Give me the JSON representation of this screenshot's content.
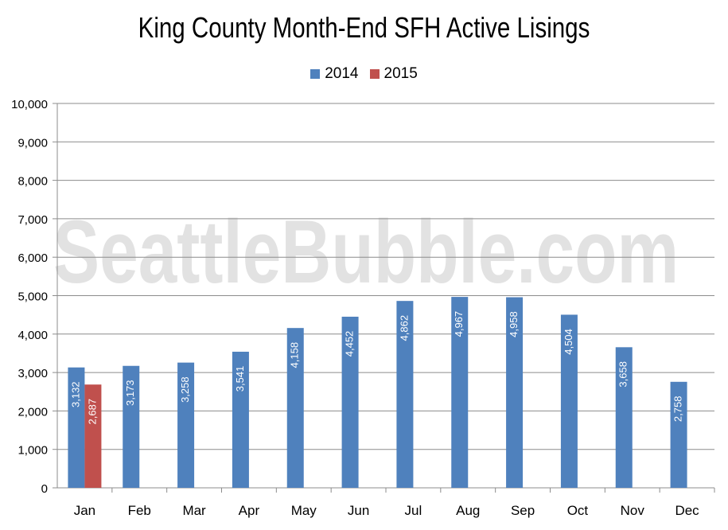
{
  "chart_data": {
    "type": "bar",
    "title": "King County Month-End SFH Active Lisings",
    "categories": [
      "Jan",
      "Feb",
      "Mar",
      "Apr",
      "May",
      "Jun",
      "Jul",
      "Aug",
      "Sep",
      "Oct",
      "Nov",
      "Dec"
    ],
    "series": [
      {
        "name": "2014",
        "color": "#4f81bd",
        "values": [
          3132,
          3173,
          3258,
          3541,
          4158,
          4452,
          4862,
          4967,
          4958,
          4504,
          3658,
          2758
        ],
        "labels": [
          "3,132",
          "3,173",
          "3,258",
          "3,541",
          "4,158",
          "4,452",
          "4,862",
          "4,967",
          "4,958",
          "4,504",
          "3,658",
          "2,758"
        ]
      },
      {
        "name": "2015",
        "color": "#c0504d",
        "values": [
          2687,
          null,
          null,
          null,
          null,
          null,
          null,
          null,
          null,
          null,
          null,
          null
        ],
        "labels": [
          "2,687",
          "",
          "",
          "",
          "",
          "",
          "",
          "",
          "",
          "",
          "",
          ""
        ]
      }
    ],
    "ylim": [
      0,
      10000
    ],
    "yticks": [
      "0",
      "1,000",
      "2,000",
      "3,000",
      "4,000",
      "5,000",
      "6,000",
      "7,000",
      "8,000",
      "9,000",
      "10,000"
    ],
    "grid": true,
    "legend": "top-center"
  },
  "watermark": "SeattleBubble.com"
}
